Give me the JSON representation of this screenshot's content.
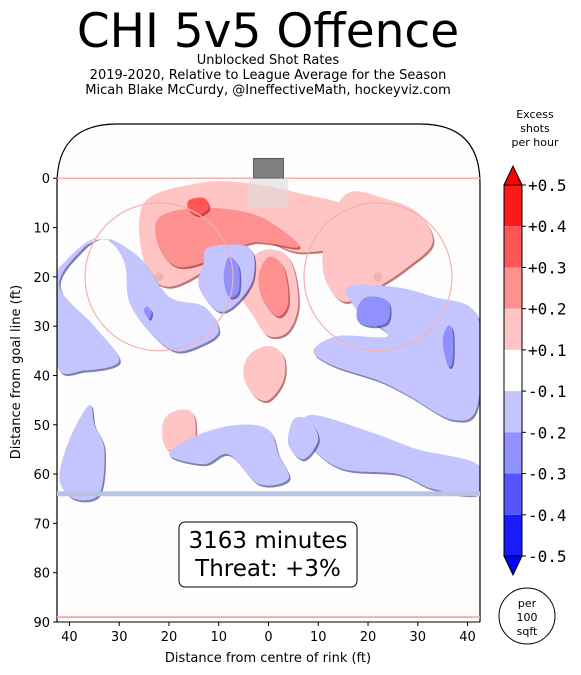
{
  "header": {
    "title": "CHI 5v5 Offence",
    "subtitle_1": "Unblocked Shot Rates",
    "subtitle_2": "2019-2020, Relative to League Average for the Season",
    "subtitle_3": "Micah Blake McCurdy, @IneffectiveMath, hockeyviz.com"
  },
  "info_box": {
    "minutes": "3163 minutes",
    "threat": "Threat: +3%"
  },
  "colorbar": {
    "title_1": "Excess",
    "title_2": "shots",
    "title_3": "per hour",
    "ticks": [
      "+0.5",
      "+0.4",
      "+0.3",
      "+0.2",
      "+0.1",
      "-0.1",
      "-0.2",
      "-0.3",
      "-0.4",
      "-0.5"
    ],
    "colors": [
      "#ff1a1a",
      "#ff5555",
      "#ff9090",
      "#ffc4c4",
      "#ffffff",
      "#c4c4ff",
      "#9090ff",
      "#5555ff",
      "#1a1aff"
    ],
    "top_cap": "#ff0000",
    "bottom_cap": "#0000ff"
  },
  "unit_badge": {
    "line1": "per",
    "line2": "100",
    "line3": "sqft"
  },
  "chart_data": {
    "type": "heatmap",
    "title": "CHI 5v5 Offence",
    "xlabel": "Distance from centre of rink (ft)",
    "ylabel": "Distance from goal line (ft)",
    "xlim": [
      42.5,
      -42.5
    ],
    "ylim": [
      90,
      -11
    ],
    "xticks": [
      "40",
      "30",
      "20",
      "10",
      "0",
      "10",
      "20",
      "30",
      "40"
    ],
    "xtick_values": [
      40,
      30,
      20,
      10,
      0,
      -10,
      -20,
      -30,
      -40
    ],
    "yticks": [
      "0",
      "10",
      "20",
      "30",
      "40",
      "50",
      "60",
      "70",
      "80",
      "90"
    ],
    "ytick_values": [
      0,
      10,
      20,
      30,
      40,
      50,
      60,
      70,
      80,
      90
    ],
    "colorbar_range": [
      -0.5,
      0.5
    ],
    "regions": [
      {
        "name": "slot-top",
        "level": 0.2,
        "points": [
          [
            25,
            5
          ],
          [
            14,
            1
          ],
          [
            4,
            1
          ],
          [
            -6,
            3
          ],
          [
            -16,
            6
          ],
          [
            -16,
            13
          ],
          [
            -6,
            15
          ],
          [
            3,
            12
          ],
          [
            10,
            17
          ],
          [
            20,
            22
          ],
          [
            25,
            17
          ]
        ]
      },
      {
        "name": "slot-top-core",
        "level": 0.3,
        "points": [
          [
            22,
            8
          ],
          [
            14,
            6
          ],
          [
            4,
            7
          ],
          [
            -2,
            10
          ],
          [
            -6,
            14
          ],
          [
            3,
            13
          ],
          [
            10,
            16
          ],
          [
            18,
            18
          ],
          [
            22,
            14
          ]
        ]
      },
      {
        "name": "slot-top-hot",
        "level": 0.4,
        "points": [
          [
            16,
            4.5
          ],
          [
            13,
            4
          ],
          [
            12,
            6
          ],
          [
            14,
            7.5
          ],
          [
            16,
            6.5
          ]
        ]
      },
      {
        "name": "slot-centre",
        "level": 0.2,
        "points": [
          [
            2,
            15
          ],
          [
            -4,
            16
          ],
          [
            -6,
            25
          ],
          [
            -4,
            31
          ],
          [
            0,
            32
          ],
          [
            3,
            28
          ],
          [
            6,
            22
          ]
        ]
      },
      {
        "name": "slot-centre-core",
        "level": 0.3,
        "points": [
          [
            0,
            16
          ],
          [
            -3,
            18
          ],
          [
            -4,
            25
          ],
          [
            -2,
            28
          ],
          [
            1,
            25
          ],
          [
            2,
            20
          ]
        ]
      },
      {
        "name": "right-circle",
        "level": 0.2,
        "points": [
          [
            -12,
            10
          ],
          [
            -16,
            3
          ],
          [
            -23,
            4
          ],
          [
            -30,
            7
          ],
          [
            -33,
            13
          ],
          [
            -28,
            18
          ],
          [
            -22,
            22
          ],
          [
            -15,
            25
          ],
          [
            -11,
            19
          ]
        ]
      },
      {
        "name": "mid-low",
        "level": 0.2,
        "points": [
          [
            -3,
            41
          ],
          [
            -3,
            36
          ],
          [
            0,
            34
          ],
          [
            4,
            36
          ],
          [
            5,
            40
          ],
          [
            3,
            44
          ],
          [
            0,
            45
          ]
        ]
      },
      {
        "name": "left-low",
        "level": 0.2,
        "points": [
          [
            21,
            49
          ],
          [
            18,
            47
          ],
          [
            15,
            48
          ],
          [
            15,
            54
          ],
          [
            18,
            56
          ],
          [
            21,
            54
          ]
        ]
      },
      {
        "name": "left-big",
        "level": -0.2,
        "points": [
          [
            42,
            22
          ],
          [
            38,
            15
          ],
          [
            33,
            12
          ],
          [
            29,
            17
          ],
          [
            28,
            25
          ],
          [
            24,
            31
          ],
          [
            19,
            35
          ],
          [
            14,
            34
          ],
          [
            10,
            31
          ],
          [
            13,
            26
          ],
          [
            20,
            24
          ],
          [
            26,
            16
          ],
          [
            34,
            12
          ],
          [
            41,
            17
          ],
          [
            42.5,
            21
          ],
          [
            42.5,
            38
          ],
          [
            37,
            39
          ],
          [
            30,
            37
          ],
          [
            35,
            30
          ]
        ]
      },
      {
        "name": "left-mid",
        "level": -0.2,
        "points": [
          [
            12,
            14
          ],
          [
            4,
            14
          ],
          [
            3,
            20
          ],
          [
            6,
            25
          ],
          [
            10,
            27
          ],
          [
            14,
            22
          ],
          [
            13,
            17
          ]
        ]
      },
      {
        "name": "left-mid-core",
        "level": -0.3,
        "points": [
          [
            8,
            16
          ],
          [
            6,
            18
          ],
          [
            6,
            23
          ],
          [
            8,
            24
          ],
          [
            9,
            20
          ]
        ]
      },
      {
        "name": "right-band",
        "level": -0.2,
        "points": [
          [
            -16,
            22
          ],
          [
            -25,
            22
          ],
          [
            -33,
            24
          ],
          [
            -42,
            28
          ],
          [
            -42,
            46
          ],
          [
            -37,
            49
          ],
          [
            -28,
            44
          ],
          [
            -22,
            41
          ],
          [
            -13,
            38
          ],
          [
            -9,
            35
          ],
          [
            -14,
            32
          ],
          [
            -24,
            32
          ],
          [
            -18,
            27
          ]
        ]
      },
      {
        "name": "right-band-core",
        "level": -0.3,
        "points": [
          [
            -18,
            26
          ],
          [
            -20,
            24
          ],
          [
            -24,
            25
          ],
          [
            -24,
            29
          ],
          [
            -21,
            30
          ],
          [
            -18,
            29
          ]
        ]
      },
      {
        "name": "right-band-core2",
        "level": -0.3,
        "points": [
          [
            -37,
            31
          ],
          [
            -36,
            30
          ],
          [
            -35,
            33
          ],
          [
            -36,
            38
          ],
          [
            -37,
            37
          ]
        ]
      },
      {
        "name": "left-lower",
        "level": -0.2,
        "points": [
          [
            36,
            46
          ],
          [
            40,
            53
          ],
          [
            42,
            61
          ],
          [
            39,
            65
          ],
          [
            34,
            64
          ],
          [
            33,
            55
          ],
          [
            35,
            50
          ]
        ]
      },
      {
        "name": "mid-lower",
        "level": -0.2,
        "points": [
          [
            -9,
            48
          ],
          [
            -22,
            52
          ],
          [
            -30,
            55
          ],
          [
            -42,
            58
          ],
          [
            -42,
            64
          ],
          [
            -33,
            63
          ],
          [
            -26,
            60
          ],
          [
            -15,
            59
          ],
          [
            -9,
            55
          ],
          [
            -7,
            51
          ]
        ]
      },
      {
        "name": "mid-lower2",
        "level": -0.2,
        "points": [
          [
            6,
            50
          ],
          [
            0,
            51
          ],
          [
            -2,
            56
          ],
          [
            -4,
            61
          ],
          [
            2,
            62
          ],
          [
            8,
            56
          ],
          [
            13,
            58
          ],
          [
            20,
            56
          ],
          [
            14,
            52
          ]
        ]
      },
      {
        "name": "centre-lower",
        "level": -0.2,
        "points": [
          [
            -5,
            49
          ],
          [
            -8,
            49
          ],
          [
            -10,
            53
          ],
          [
            -7,
            57
          ],
          [
            -4,
            54
          ]
        ]
      },
      {
        "name": "small-left",
        "level": -0.3,
        "points": [
          [
            25,
            27
          ],
          [
            24.5,
            26
          ],
          [
            23.5,
            27
          ],
          [
            24,
            28.5
          ]
        ]
      }
    ]
  }
}
